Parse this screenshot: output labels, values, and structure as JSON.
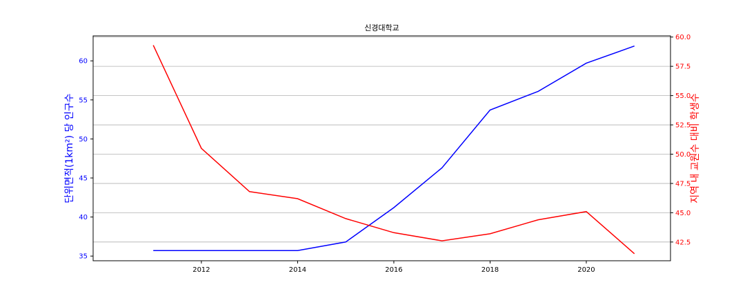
{
  "chart_data": {
    "type": "line",
    "title": "신경대학교",
    "xlabel": "",
    "x": [
      2011,
      2012,
      2013,
      2014,
      2015,
      2016,
      2017,
      2018,
      2019,
      2020,
      2021
    ],
    "xlim": [
      2009.75,
      2021.75
    ],
    "xticks": [
      "2012",
      "2014",
      "2016",
      "2018",
      "2020"
    ],
    "grid": "horizontal (right axis)",
    "series": [
      {
        "axis": "left",
        "color": "#0000ff",
        "values": [
          35.7,
          35.7,
          35.7,
          35.7,
          36.8,
          41.2,
          46.3,
          53.7,
          56.1,
          59.7,
          61.9
        ]
      },
      {
        "axis": "right",
        "color": "#ff0000",
        "values": [
          59.3,
          50.5,
          46.8,
          46.2,
          44.5,
          43.3,
          42.6,
          43.2,
          44.4,
          45.1,
          41.5
        ]
      }
    ],
    "left_axis": {
      "label": "단위면적(1km²) 당 인구수",
      "color": "#0000ff",
      "ylim": [
        34.4,
        63.2
      ],
      "ticks": [
        "35",
        "40",
        "45",
        "50",
        "55",
        "60"
      ]
    },
    "right_axis": {
      "label": "지역 내 교원수 대비 학생수",
      "color": "#ff0000",
      "ylim": [
        40.9,
        60.1
      ],
      "ticks": [
        "42.5",
        "45.0",
        "47.5",
        "50.0",
        "52.5",
        "55.0",
        "57.5",
        "60.0"
      ]
    }
  }
}
